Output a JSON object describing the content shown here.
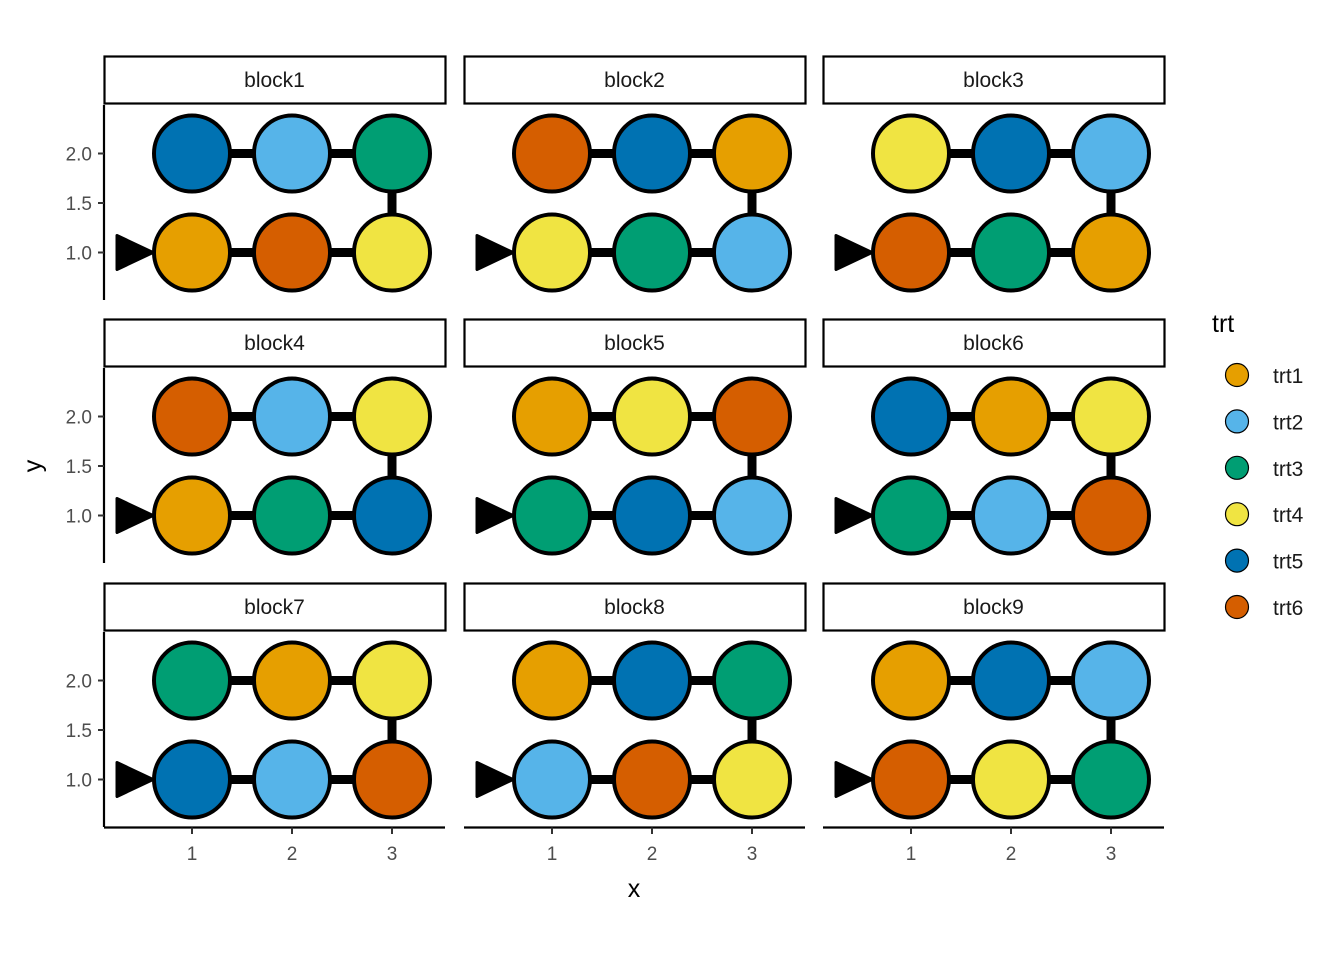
{
  "chart_data": {
    "type": "scatter",
    "subtype": "faceted serpentine layout",
    "x_label": "x",
    "y_label": "y",
    "x_ticks": [
      1,
      2,
      3
    ],
    "y_ticks": [
      "1.0",
      "1.5",
      "2.0"
    ],
    "xlim": [
      0.1,
      3.55
    ],
    "ylim": [
      0.52,
      2.48
    ],
    "legend": {
      "title": "trt",
      "position": "right",
      "items": [
        {
          "label": "trt1",
          "color": "#E69F00"
        },
        {
          "label": "trt2",
          "color": "#56B4E9"
        },
        {
          "label": "trt3",
          "color": "#009E73"
        },
        {
          "label": "trt4",
          "color": "#F0E442"
        },
        {
          "label": "trt5",
          "color": "#0072B2"
        },
        {
          "label": "trt6",
          "color": "#D55E00"
        }
      ]
    },
    "serpentine_path": [
      [
        1,
        1
      ],
      [
        2,
        1
      ],
      [
        3,
        1
      ],
      [
        3,
        2
      ],
      [
        2,
        2
      ],
      [
        1,
        2
      ]
    ],
    "start_marker": {
      "shape": "triangle-right",
      "x": 0.5,
      "y": 1
    },
    "facets": [
      {
        "name": "block1",
        "points": [
          {
            "x": 1,
            "y": 1,
            "trt": "trt1"
          },
          {
            "x": 2,
            "y": 1,
            "trt": "trt6"
          },
          {
            "x": 3,
            "y": 1,
            "trt": "trt4"
          },
          {
            "x": 1,
            "y": 2,
            "trt": "trt5"
          },
          {
            "x": 2,
            "y": 2,
            "trt": "trt2"
          },
          {
            "x": 3,
            "y": 2,
            "trt": "trt3"
          }
        ]
      },
      {
        "name": "block2",
        "points": [
          {
            "x": 1,
            "y": 1,
            "trt": "trt4"
          },
          {
            "x": 2,
            "y": 1,
            "trt": "trt3"
          },
          {
            "x": 3,
            "y": 1,
            "trt": "trt2"
          },
          {
            "x": 1,
            "y": 2,
            "trt": "trt6"
          },
          {
            "x": 2,
            "y": 2,
            "trt": "trt5"
          },
          {
            "x": 3,
            "y": 2,
            "trt": "trt1"
          }
        ]
      },
      {
        "name": "block3",
        "points": [
          {
            "x": 1,
            "y": 1,
            "trt": "trt6"
          },
          {
            "x": 2,
            "y": 1,
            "trt": "trt3"
          },
          {
            "x": 3,
            "y": 1,
            "trt": "trt1"
          },
          {
            "x": 1,
            "y": 2,
            "trt": "trt4"
          },
          {
            "x": 2,
            "y": 2,
            "trt": "trt5"
          },
          {
            "x": 3,
            "y": 2,
            "trt": "trt2"
          }
        ]
      },
      {
        "name": "block4",
        "points": [
          {
            "x": 1,
            "y": 1,
            "trt": "trt1"
          },
          {
            "x": 2,
            "y": 1,
            "trt": "trt3"
          },
          {
            "x": 3,
            "y": 1,
            "trt": "trt5"
          },
          {
            "x": 1,
            "y": 2,
            "trt": "trt6"
          },
          {
            "x": 2,
            "y": 2,
            "trt": "trt2"
          },
          {
            "x": 3,
            "y": 2,
            "trt": "trt4"
          }
        ]
      },
      {
        "name": "block5",
        "points": [
          {
            "x": 1,
            "y": 1,
            "trt": "trt3"
          },
          {
            "x": 2,
            "y": 1,
            "trt": "trt5"
          },
          {
            "x": 3,
            "y": 1,
            "trt": "trt2"
          },
          {
            "x": 1,
            "y": 2,
            "trt": "trt1"
          },
          {
            "x": 2,
            "y": 2,
            "trt": "trt4"
          },
          {
            "x": 3,
            "y": 2,
            "trt": "trt6"
          }
        ]
      },
      {
        "name": "block6",
        "points": [
          {
            "x": 1,
            "y": 1,
            "trt": "trt3"
          },
          {
            "x": 2,
            "y": 1,
            "trt": "trt2"
          },
          {
            "x": 3,
            "y": 1,
            "trt": "trt6"
          },
          {
            "x": 1,
            "y": 2,
            "trt": "trt5"
          },
          {
            "x": 2,
            "y": 2,
            "trt": "trt1"
          },
          {
            "x": 3,
            "y": 2,
            "trt": "trt4"
          }
        ]
      },
      {
        "name": "block7",
        "points": [
          {
            "x": 1,
            "y": 1,
            "trt": "trt5"
          },
          {
            "x": 2,
            "y": 1,
            "trt": "trt2"
          },
          {
            "x": 3,
            "y": 1,
            "trt": "trt6"
          },
          {
            "x": 1,
            "y": 2,
            "trt": "trt3"
          },
          {
            "x": 2,
            "y": 2,
            "trt": "trt1"
          },
          {
            "x": 3,
            "y": 2,
            "trt": "trt4"
          }
        ]
      },
      {
        "name": "block8",
        "points": [
          {
            "x": 1,
            "y": 1,
            "trt": "trt2"
          },
          {
            "x": 2,
            "y": 1,
            "trt": "trt6"
          },
          {
            "x": 3,
            "y": 1,
            "trt": "trt4"
          },
          {
            "x": 1,
            "y": 2,
            "trt": "trt1"
          },
          {
            "x": 2,
            "y": 2,
            "trt": "trt5"
          },
          {
            "x": 3,
            "y": 2,
            "trt": "trt3"
          }
        ]
      },
      {
        "name": "block9",
        "points": [
          {
            "x": 1,
            "y": 1,
            "trt": "trt6"
          },
          {
            "x": 2,
            "y": 1,
            "trt": "trt4"
          },
          {
            "x": 3,
            "y": 1,
            "trt": "trt3"
          },
          {
            "x": 1,
            "y": 2,
            "trt": "trt1"
          },
          {
            "x": 2,
            "y": 2,
            "trt": "trt5"
          },
          {
            "x": 3,
            "y": 2,
            "trt": "trt2"
          }
        ]
      }
    ]
  }
}
